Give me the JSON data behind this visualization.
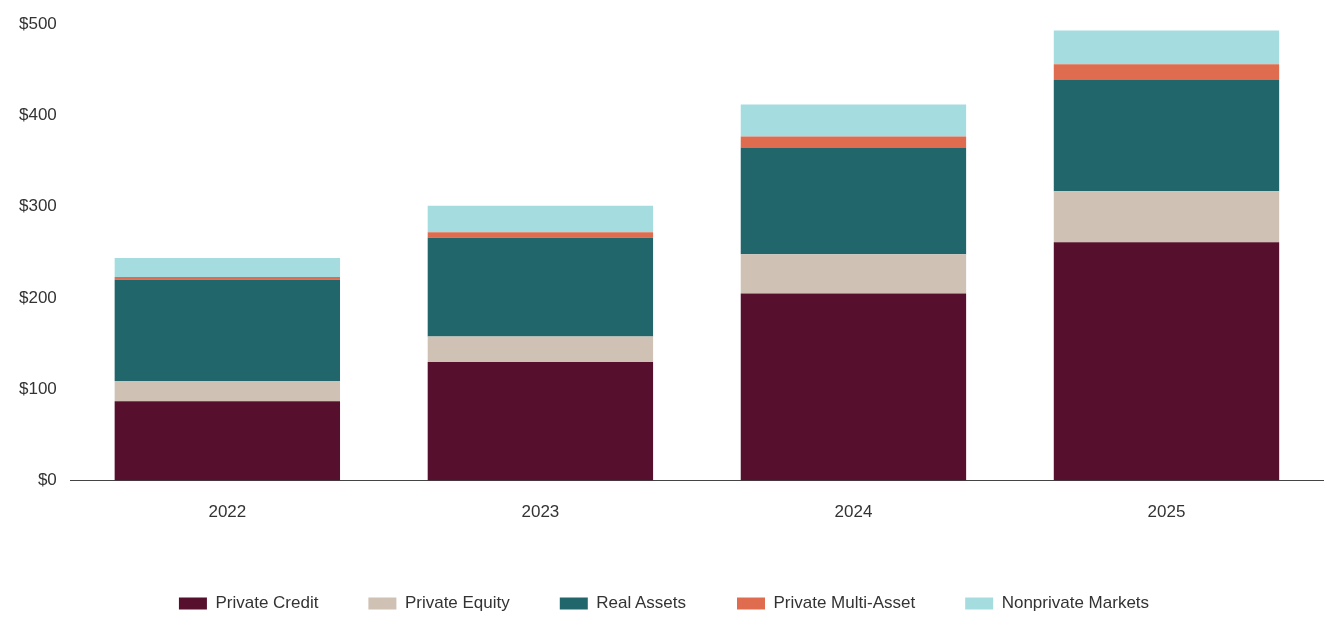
{
  "chart_data": {
    "type": "bar",
    "stacked": true,
    "categories": [
      "2022",
      "2023",
      "2024",
      "2025"
    ],
    "series": [
      {
        "name": "Private Credit",
        "color": "#560f2d",
        "values": [
          87,
          130,
          205,
          261
        ]
      },
      {
        "name": "Private Equity",
        "color": "#cfc1b4",
        "values": [
          22,
          28,
          43,
          56
        ]
      },
      {
        "name": "Real Assets",
        "color": "#20666b",
        "values": [
          111,
          108,
          117,
          122
        ]
      },
      {
        "name": "Private Multi-Asset",
        "color": "#e06c50",
        "values": [
          3,
          6,
          12,
          17
        ]
      },
      {
        "name": "Nonprivate Markets",
        "color": "#a4dcdf",
        "values": [
          21,
          29,
          35,
          37
        ]
      }
    ],
    "ylim": [
      0,
      500
    ],
    "yticks": [
      {
        "value": 0,
        "label": "$0"
      },
      {
        "value": 100,
        "label": "$100"
      },
      {
        "value": 200,
        "label": "$200"
      },
      {
        "value": 300,
        "label": "$300"
      },
      {
        "value": 400,
        "label": "$400"
      },
      {
        "value": 500,
        "label": "$500"
      }
    ],
    "grid": false,
    "legend": "bottom"
  }
}
